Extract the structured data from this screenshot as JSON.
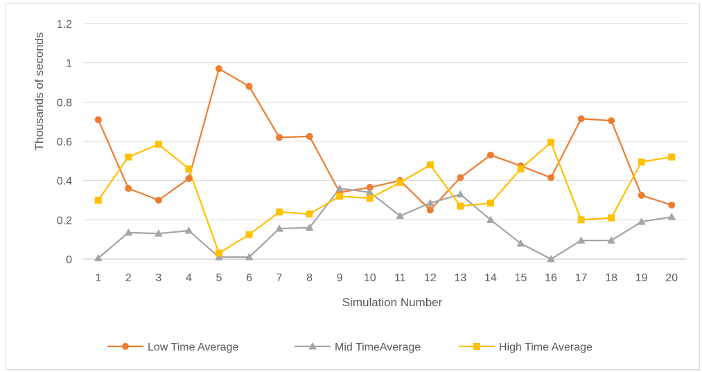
{
  "chart_data": {
    "type": "line",
    "title": "",
    "xlabel": "Simulation Number",
    "ylabel": "Thousands of seconds",
    "ylim": [
      0,
      1.2
    ],
    "yticks": [
      "0",
      "0.2",
      "0.4",
      "0.6",
      "0.8",
      "1",
      "1.2"
    ],
    "grid": true,
    "legend_position": "bottom",
    "categories": [
      "1",
      "2",
      "3",
      "4",
      "5",
      "6",
      "7",
      "8",
      "9",
      "10",
      "11",
      "12",
      "13",
      "14",
      "15",
      "16",
      "17",
      "18",
      "19",
      "20"
    ],
    "series": [
      {
        "name": "Low Time Average",
        "color": "#ED7D31",
        "marker": "circle",
        "values": [
          0.71,
          0.36,
          0.3,
          0.41,
          0.97,
          0.88,
          0.62,
          0.625,
          0.34,
          0.365,
          0.4,
          0.25,
          0.415,
          0.53,
          0.475,
          0.415,
          0.715,
          0.705,
          0.325,
          0.275
        ]
      },
      {
        "name": "Mid TimeAverage",
        "color": "#A5A5A5",
        "marker": "triangle",
        "values": [
          0.005,
          0.135,
          0.13,
          0.145,
          0.01,
          0.01,
          0.155,
          0.16,
          0.36,
          0.34,
          0.22,
          0.285,
          0.33,
          0.2,
          0.08,
          0.0,
          0.095,
          0.095,
          0.19,
          0.215
        ]
      },
      {
        "name": "High Time Average",
        "color": "#FFC000",
        "marker": "square",
        "values": [
          0.3,
          0.52,
          0.585,
          0.46,
          0.03,
          0.125,
          0.24,
          0.23,
          0.32,
          0.31,
          0.39,
          0.48,
          0.27,
          0.285,
          0.46,
          0.595,
          0.2,
          0.21,
          0.495,
          0.52
        ]
      }
    ]
  }
}
